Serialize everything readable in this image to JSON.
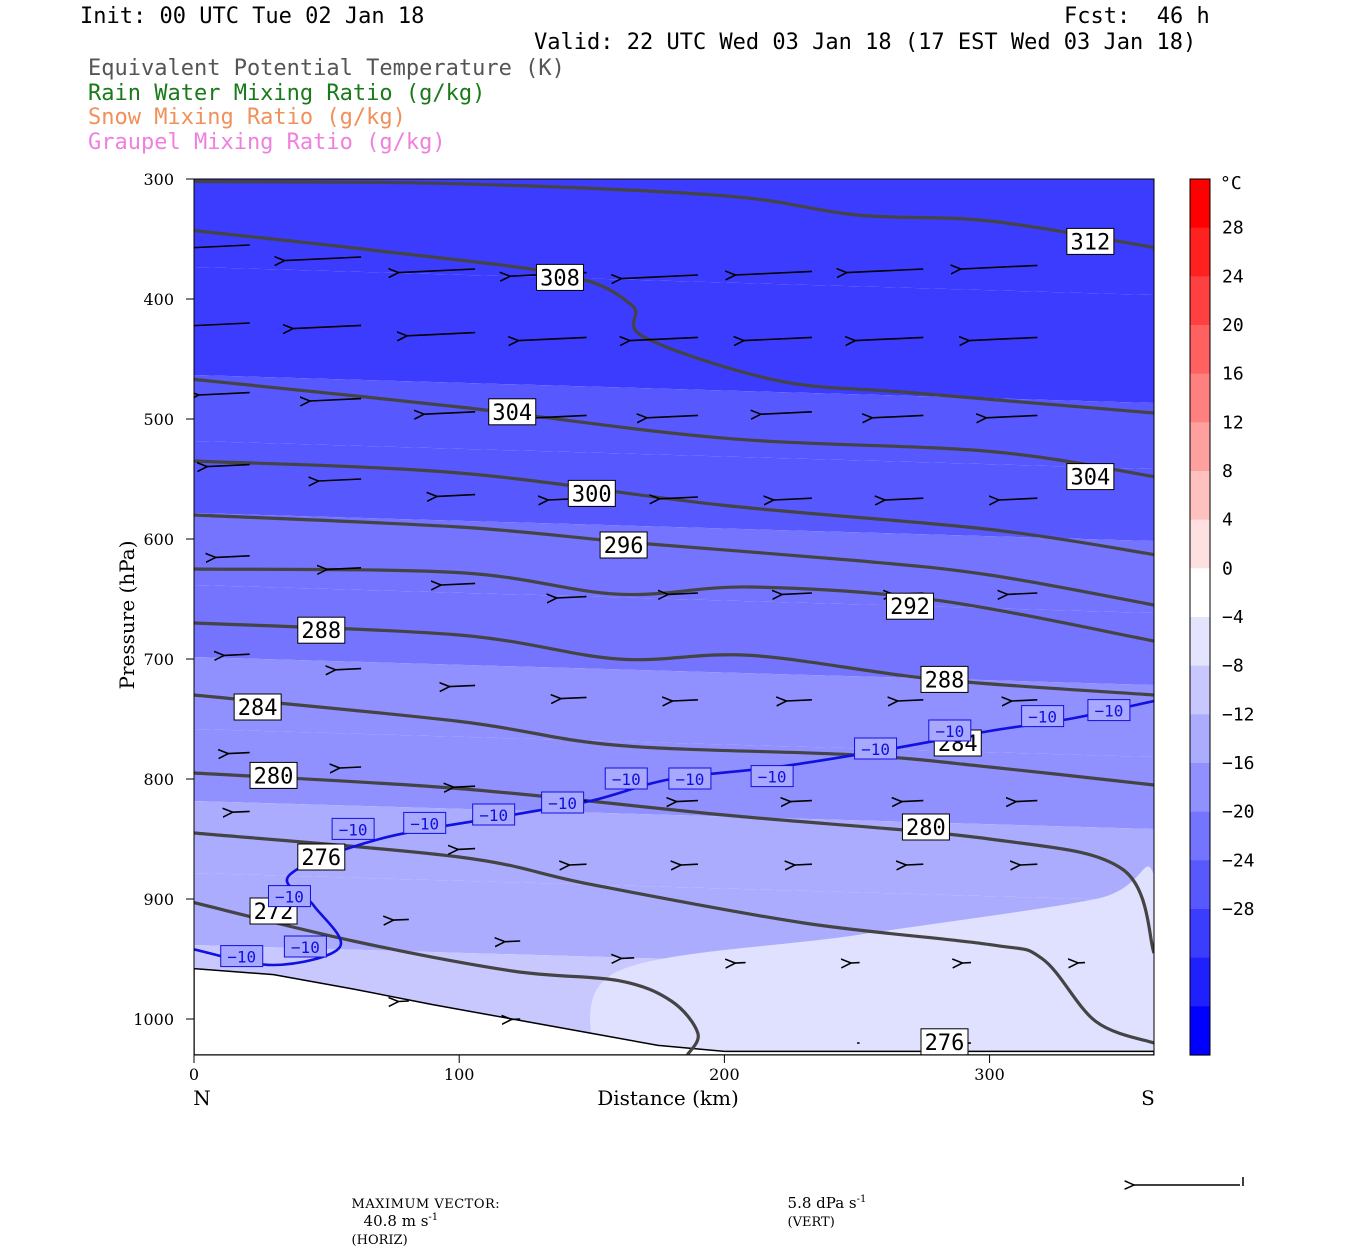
{
  "header": {
    "init": "Init: 00 UTC Tue 02 Jan 18",
    "fcst": "Fcst:  46 h",
    "valid": "Valid: 22 UTC Wed 03 Jan 18 (17 EST Wed 03 Jan 18)",
    "fields": [
      {
        "label": "Equivalent Potential Temperature (K)",
        "color": "#555555"
      },
      {
        "label": "Rain Water Mixing Ratio (g/kg)",
        "color": "#1a7a1a"
      },
      {
        "label": "Snow Mixing Ratio (g/kg)",
        "color": "#f0905a"
      },
      {
        "label": "Graupel Mixing Ratio (g/kg)",
        "color": "#f080e0"
      }
    ]
  },
  "chart_data": {
    "type": "cross-section",
    "xlabel": "Distance (km)",
    "ylabel": "Pressure (hPa)",
    "xlim": [
      0,
      362
    ],
    "ylim": [
      1030,
      300
    ],
    "x_ticks": [
      0,
      100,
      200,
      300
    ],
    "y_ticks": [
      300,
      400,
      500,
      600,
      700,
      800,
      900,
      1000
    ],
    "end_labels": {
      "left": "N",
      "right": "S"
    },
    "colorbar": {
      "unit": "°C",
      "ticks": [
        28,
        24,
        20,
        16,
        12,
        8,
        4,
        0,
        -4,
        -8,
        -12,
        -16,
        -20,
        -24,
        -28
      ],
      "colors": [
        "#ff0000",
        "#ff2020",
        "#ff4040",
        "#ff6060",
        "#ff8080",
        "#ffa0a0",
        "#ffc0c0",
        "#ffe0e0",
        "#ffffff",
        "#e4e4ff",
        "#c8c8ff",
        "#acacff",
        "#9090ff",
        "#7474ff",
        "#5858ff",
        "#3c3cff",
        "#2020ff",
        "#0000ff"
      ]
    },
    "temperature_levels": [
      {
        "p": 320,
        "t": -30
      },
      {
        "p": 450,
        "t": -28
      },
      {
        "p": 500,
        "t": -26
      },
      {
        "p": 560,
        "t": -24
      },
      {
        "p": 620,
        "t": -22
      },
      {
        "p": 680,
        "t": -20
      },
      {
        "p": 740,
        "t": -18
      },
      {
        "p": 800,
        "t": -16
      },
      {
        "p": 860,
        "t": -14
      },
      {
        "p": 920,
        "t": -12
      },
      {
        "p": 980,
        "t": -10
      }
    ],
    "theta_e_contours": [
      {
        "label": "312",
        "points": [
          [
            0,
            302
          ],
          [
            100,
            304
          ],
          [
            200,
            314
          ],
          [
            250,
            330
          ],
          [
            300,
            335
          ],
          [
            362,
            357
          ]
        ],
        "label_at": [
          338,
          352
        ]
      },
      {
        "label": "308",
        "points": [
          [
            0,
            343
          ],
          [
            70,
            360
          ],
          [
            140,
            380
          ],
          [
            165,
            405
          ],
          [
            170,
            432
          ],
          [
            220,
            468
          ],
          [
            270,
            478
          ],
          [
            362,
            495
          ]
        ],
        "label_at": [
          138,
          382
        ]
      },
      {
        "label": "304",
        "points": [
          [
            0,
            467
          ],
          [
            100,
            490
          ],
          [
            200,
            516
          ],
          [
            300,
            527
          ],
          [
            362,
            548
          ]
        ],
        "label_at": [
          120,
          494
        ],
        "label2": "304",
        "label2_at": [
          338,
          548
        ]
      },
      {
        "label": "300",
        "points": [
          [
            0,
            535
          ],
          [
            100,
            545
          ],
          [
            200,
            572
          ],
          [
            300,
            592
          ],
          [
            362,
            613
          ]
        ],
        "label_at": [
          150,
          562
        ]
      },
      {
        "label": "296",
        "points": [
          [
            0,
            580
          ],
          [
            100,
            590
          ],
          [
            165,
            603
          ],
          [
            250,
            618
          ],
          [
            300,
            630
          ],
          [
            362,
            655
          ]
        ],
        "label_at": [
          162,
          605
        ]
      },
      {
        "label": "292",
        "points": [
          [
            0,
            625
          ],
          [
            100,
            628
          ],
          [
            160,
            646
          ],
          [
            210,
            640
          ],
          [
            280,
            651
          ],
          [
            362,
            685
          ]
        ],
        "label_at": [
          270,
          656
        ]
      },
      {
        "label": "288",
        "points": [
          [
            0,
            670
          ],
          [
            100,
            680
          ],
          [
            160,
            700
          ],
          [
            210,
            697
          ],
          [
            280,
            717
          ],
          [
            362,
            730
          ]
        ],
        "label_at": [
          48,
          676
        ],
        "label2": "288",
        "label2_at": [
          283,
          717
        ]
      },
      {
        "label": "284",
        "points": [
          [
            0,
            730
          ],
          [
            100,
            752
          ],
          [
            160,
            772
          ],
          [
            250,
            780
          ],
          [
            300,
            790
          ],
          [
            362,
            805
          ]
        ],
        "label_at": [
          24,
          740
        ],
        "label2": "284",
        "label2_at": [
          288,
          770
        ]
      },
      {
        "label": "280",
        "points": [
          [
            0,
            795
          ],
          [
            100,
            808
          ],
          [
            200,
            830
          ],
          [
            300,
            850
          ],
          [
            350,
            875
          ],
          [
            362,
            945
          ]
        ],
        "label_at": [
          30,
          797
        ],
        "label2": "280",
        "label2_at": [
          276,
          840
        ]
      },
      {
        "label": "276",
        "points": [
          [
            0,
            845
          ],
          [
            100,
            865
          ],
          [
            150,
            888
          ],
          [
            230,
            920
          ],
          [
            300,
            938
          ],
          [
            320,
            950
          ],
          [
            340,
            1002
          ],
          [
            362,
            1020
          ]
        ],
        "label_at": [
          48,
          865
        ],
        "label2": "276",
        "label2_at": [
          283,
          1019
        ]
      },
      {
        "label": "272",
        "points": [
          [
            0,
            903
          ],
          [
            60,
            935
          ],
          [
            120,
            960
          ],
          [
            160,
            968
          ],
          [
            180,
            985
          ],
          [
            190,
            1012
          ],
          [
            186,
            1030
          ]
        ],
        "label_at": [
          30,
          910
        ]
      }
    ],
    "isotherm_minus10": {
      "label": "−10",
      "points": [
        [
          0,
          942
        ],
        [
          30,
          955
        ],
        [
          55,
          940
        ],
        [
          45,
          905
        ],
        [
          36,
          880
        ],
        [
          70,
          850
        ],
        [
          120,
          830
        ],
        [
          150,
          818
        ],
        [
          180,
          800
        ],
        [
          220,
          790
        ],
        [
          260,
          776
        ],
        [
          300,
          760
        ],
        [
          330,
          750
        ],
        [
          362,
          735
        ]
      ],
      "labels_at": [
        [
          18,
          948
        ],
        [
          42,
          940
        ],
        [
          36,
          898
        ],
        [
          60,
          842
        ],
        [
          87,
          837
        ],
        [
          113,
          830
        ],
        [
          139,
          820
        ],
        [
          163,
          800
        ],
        [
          187,
          800
        ],
        [
          218,
          798
        ],
        [
          257,
          775
        ],
        [
          285,
          760
        ],
        [
          320,
          748
        ],
        [
          345,
          743
        ]
      ]
    },
    "wind_vectors": [
      {
        "x": 21,
        "p": 355,
        "u": -1.0
      },
      {
        "x": 63,
        "p": 365,
        "u": -0.9
      },
      {
        "x": 106,
        "p": 375,
        "u": -0.9
      },
      {
        "x": 148,
        "p": 378,
        "u": -0.9
      },
      {
        "x": 190,
        "p": 380,
        "u": -0.9
      },
      {
        "x": 233,
        "p": 377,
        "u": -0.9
      },
      {
        "x": 275,
        "p": 375,
        "u": -0.9
      },
      {
        "x": 318,
        "p": 372,
        "u": -0.9
      },
      {
        "x": 21,
        "p": 420,
        "u": -0.8
      },
      {
        "x": 63,
        "p": 422,
        "u": -0.8
      },
      {
        "x": 106,
        "p": 428,
        "u": -0.8
      },
      {
        "x": 148,
        "p": 432,
        "u": -0.8
      },
      {
        "x": 190,
        "p": 432,
        "u": -0.8
      },
      {
        "x": 233,
        "p": 432,
        "u": -0.8
      },
      {
        "x": 275,
        "p": 432,
        "u": -0.8
      },
      {
        "x": 318,
        "p": 432,
        "u": -0.8
      },
      {
        "x": 21,
        "p": 478,
        "u": -0.6
      },
      {
        "x": 63,
        "p": 483,
        "u": -0.6
      },
      {
        "x": 106,
        "p": 494,
        "u": -0.6
      },
      {
        "x": 148,
        "p": 497,
        "u": -0.6
      },
      {
        "x": 190,
        "p": 497,
        "u": -0.6
      },
      {
        "x": 233,
        "p": 494,
        "u": -0.6
      },
      {
        "x": 275,
        "p": 497,
        "u": -0.6
      },
      {
        "x": 318,
        "p": 497,
        "u": -0.6
      },
      {
        "x": 21,
        "p": 538,
        "u": -0.5
      },
      {
        "x": 63,
        "p": 550,
        "u": -0.5
      },
      {
        "x": 106,
        "p": 563,
        "u": -0.45
      },
      {
        "x": 148,
        "p": 566,
        "u": -0.45
      },
      {
        "x": 190,
        "p": 565,
        "u": -0.45
      },
      {
        "x": 233,
        "p": 566,
        "u": -0.45
      },
      {
        "x": 275,
        "p": 566,
        "u": -0.45
      },
      {
        "x": 318,
        "p": 566,
        "u": -0.45
      },
      {
        "x": 21,
        "p": 614,
        "u": -0.4
      },
      {
        "x": 63,
        "p": 624,
        "u": -0.4
      },
      {
        "x": 106,
        "p": 637,
        "u": -0.4
      },
      {
        "x": 148,
        "p": 648,
        "u": -0.35
      },
      {
        "x": 190,
        "p": 645,
        "u": -0.35
      },
      {
        "x": 233,
        "p": 645,
        "u": -0.35
      },
      {
        "x": 275,
        "p": 645,
        "u": -0.35
      },
      {
        "x": 318,
        "p": 645,
        "u": -0.35
      },
      {
        "x": 21,
        "p": 696,
        "u": -0.3
      },
      {
        "x": 63,
        "p": 708,
        "u": -0.3
      },
      {
        "x": 106,
        "p": 722,
        "u": -0.3
      },
      {
        "x": 148,
        "p": 732,
        "u": -0.3
      },
      {
        "x": 190,
        "p": 734,
        "u": -0.3
      },
      {
        "x": 233,
        "p": 734,
        "u": -0.3
      },
      {
        "x": 275,
        "p": 734,
        "u": -0.3
      },
      {
        "x": 318,
        "p": 734,
        "u": -0.3
      },
      {
        "x": 21,
        "p": 778,
        "u": -0.25
      },
      {
        "x": 63,
        "p": 790,
        "u": -0.25
      },
      {
        "x": 106,
        "p": 806,
        "u": -0.25
      },
      {
        "x": 148,
        "p": 818,
        "u": -0.2
      },
      {
        "x": 190,
        "p": 818,
        "u": -0.25
      },
      {
        "x": 233,
        "p": 818,
        "u": -0.25
      },
      {
        "x": 275,
        "p": 818,
        "u": -0.25
      },
      {
        "x": 318,
        "p": 818,
        "u": -0.25
      },
      {
        "x": 21,
        "p": 827,
        "u": -0.2
      },
      {
        "x": 63,
        "p": 842,
        "u": -0.2
      },
      {
        "x": 106,
        "p": 858,
        "u": -0.2
      },
      {
        "x": 148,
        "p": 871,
        "u": -0.2
      },
      {
        "x": 190,
        "p": 871,
        "u": -0.2
      },
      {
        "x": 233,
        "p": 871,
        "u": -0.2
      },
      {
        "x": 275,
        "p": 871,
        "u": -0.2
      },
      {
        "x": 318,
        "p": 871,
        "u": -0.2
      },
      {
        "x": 81,
        "p": 917,
        "u": -0.18
      },
      {
        "x": 123,
        "p": 935,
        "u": -0.18
      },
      {
        "x": 166,
        "p": 949,
        "u": -0.15
      },
      {
        "x": 208,
        "p": 953,
        "u": -0.12
      },
      {
        "x": 251,
        "p": 953,
        "u": -0.1
      },
      {
        "x": 293,
        "p": 953,
        "u": -0.1
      },
      {
        "x": 336,
        "p": 953,
        "u": -0.08
      },
      {
        "x": 81,
        "p": 985,
        "u": -0.12
      },
      {
        "x": 123,
        "p": 1000,
        "u": -0.1
      },
      {
        "x": 251,
        "p": 1020,
        "u": -0.03
      },
      {
        "x": 293,
        "p": 1020,
        "u": -0.03
      }
    ],
    "terrain": [
      [
        0,
        958
      ],
      [
        30,
        963
      ],
      [
        60,
        975
      ],
      [
        90,
        988
      ],
      [
        120,
        1000
      ],
      [
        150,
        1012
      ],
      [
        175,
        1022
      ],
      [
        200,
        1027
      ],
      [
        362,
        1027
      ]
    ],
    "max_vector": {
      "label": "MAXIMUM VECTOR:",
      "horiz": "40.8 m s",
      "horiz_exp": "-1",
      "horiz_note": "(HORIZ)",
      "vert": "5.8 dPa s",
      "vert_exp": "-1",
      "vert_note": "(VERT)"
    }
  }
}
